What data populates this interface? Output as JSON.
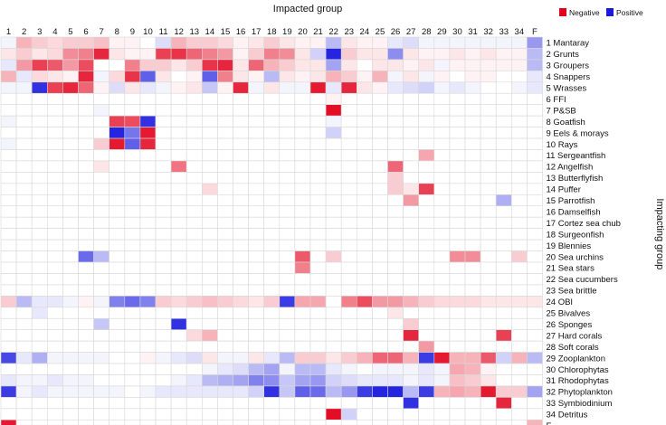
{
  "chart_data": {
    "type": "heatmap",
    "title": "Impacted group",
    "xlabel": "Impacted group",
    "ylabel": "Impacting group",
    "legend": {
      "negative_label": "Negative",
      "positive_label": "Positive",
      "placement": "top-right"
    },
    "colors": {
      "negative": "#e2001a",
      "positive": "#1a1adf",
      "neutral": "#ffffff",
      "grid": "#d8d8d8"
    },
    "columns": [
      "1",
      "2",
      "3",
      "4",
      "5",
      "6",
      "7",
      "8",
      "9",
      "10",
      "11",
      "12",
      "13",
      "14",
      "15",
      "16",
      "17",
      "18",
      "19",
      "20",
      "21",
      "22",
      "23",
      "24",
      "25",
      "26",
      "27",
      "28",
      "29",
      "30",
      "31",
      "32",
      "33",
      "34",
      "F"
    ],
    "rows": [
      {
        "num": "1",
        "name": "Mantaray"
      },
      {
        "num": "2",
        "name": "Grunts"
      },
      {
        "num": "3",
        "name": "Groupers"
      },
      {
        "num": "4",
        "name": "Snappers"
      },
      {
        "num": "5",
        "name": "Wrasses"
      },
      {
        "num": "6",
        "name": "FFI"
      },
      {
        "num": "7",
        "name": "P&SB"
      },
      {
        "num": "8",
        "name": "Goatfish"
      },
      {
        "num": "9",
        "name": "Eels & morays"
      },
      {
        "num": "10",
        "name": "Rays"
      },
      {
        "num": "11",
        "name": "Sergeantfish"
      },
      {
        "num": "12",
        "name": "Angelfish"
      },
      {
        "num": "13",
        "name": "Butterflyfish"
      },
      {
        "num": "14",
        "name": "Puffer"
      },
      {
        "num": "15",
        "name": "Parrotfish"
      },
      {
        "num": "16",
        "name": "Damselfish"
      },
      {
        "num": "17",
        "name": "Cortez sea chub"
      },
      {
        "num": "18",
        "name": "Surgeonfish"
      },
      {
        "num": "19",
        "name": "Blennies"
      },
      {
        "num": "20",
        "name": "Sea urchins"
      },
      {
        "num": "21",
        "name": "Sea stars"
      },
      {
        "num": "22",
        "name": "Sea cucumbers"
      },
      {
        "num": "23",
        "name": "Sea brittle"
      },
      {
        "num": "24",
        "name": "OBI"
      },
      {
        "num": "25",
        "name": "Bivalves"
      },
      {
        "num": "26",
        "name": "Sponges"
      },
      {
        "num": "27",
        "name": "Hard corals"
      },
      {
        "num": "28",
        "name": "Soft corals"
      },
      {
        "num": "29",
        "name": "Zooplankton"
      },
      {
        "num": "30",
        "name": "Chlorophytas"
      },
      {
        "num": "31",
        "name": "Rhodophytas"
      },
      {
        "num": "32",
        "name": "Phytoplankton"
      },
      {
        "num": "33",
        "name": "Symbiodinium"
      },
      {
        "num": "34",
        "name": "Detritus"
      },
      {
        "num": "F",
        "name": ""
      }
    ],
    "values": [
      [
        0.05,
        -0.3,
        -0.2,
        -0.15,
        -0.2,
        -0.2,
        -0.25,
        -0.05,
        -0.05,
        0,
        0.15,
        -0.3,
        -0.2,
        -0.2,
        -0.15,
        -0.05,
        -0.1,
        -0.2,
        -0.1,
        -0.05,
        -0.05,
        0.3,
        -0.1,
        -0.05,
        -0.05,
        0.1,
        0.15,
        0.05,
        0.05,
        0.05,
        0.05,
        0.05,
        0.05,
        0.05,
        0.45
      ],
      [
        -0.1,
        -0.2,
        -0.1,
        -0.15,
        -0.45,
        -0.5,
        -0.85,
        -0.1,
        -0.05,
        -0.05,
        -0.75,
        -0.8,
        -0.6,
        -0.5,
        -0.4,
        -0.05,
        -0.2,
        -0.5,
        -0.45,
        -0.1,
        0.2,
        0.95,
        -0.2,
        -0.1,
        -0.1,
        0.5,
        -0.1,
        -0.05,
        -0.05,
        -0.1,
        -0.05,
        -0.1,
        -0.05,
        -0.05,
        0.3
      ],
      [
        0.1,
        -0.4,
        -0.75,
        -0.65,
        -0.4,
        -0.7,
        0,
        0,
        -0.5,
        -0.2,
        -0.2,
        -0.1,
        -0.2,
        -0.8,
        -0.85,
        -0.1,
        -0.6,
        -0.3,
        -0.2,
        -0.1,
        -0.1,
        0.4,
        -0.1,
        0,
        -0.1,
        -0.1,
        -0.05,
        -0.1,
        0.05,
        -0.05,
        -0.05,
        -0.05,
        -0.05,
        -0.05,
        0.3
      ],
      [
        -0.3,
        0.1,
        -0.15,
        -0.1,
        -0.05,
        -0.85,
        0.05,
        -0.15,
        -0.8,
        0.7,
        -0.1,
        0,
        -0.05,
        0.7,
        -0.5,
        -0.1,
        -0.05,
        0.3,
        -0.1,
        -0.05,
        -0.1,
        -0.3,
        -0.2,
        -0.05,
        -0.3,
        0.05,
        -0.1,
        0.05,
        -0.05,
        0,
        -0.05,
        -0.05,
        0,
        0,
        0.1
      ],
      [
        0.05,
        0.05,
        0.9,
        -0.75,
        -0.85,
        -0.6,
        -0.05,
        0.15,
        -0.1,
        0.1,
        0.05,
        -0.05,
        -0.1,
        0.25,
        -0.05,
        -0.85,
        0.05,
        -0.1,
        0.05,
        0.05,
        -0.9,
        0.1,
        -0.85,
        -0.1,
        -0.05,
        0.1,
        0.15,
        0.2,
        0.05,
        0.1,
        0.05,
        0,
        0,
        0.05,
        0.1
      ],
      [
        0,
        0,
        0,
        0,
        0,
        0,
        0,
        0,
        0,
        0,
        0,
        0,
        0,
        0,
        0,
        0,
        0,
        0,
        0,
        0,
        0,
        -0.05,
        0,
        0,
        0,
        0,
        0,
        0,
        0,
        0,
        0,
        0,
        0,
        0,
        0
      ],
      [
        0,
        0,
        0,
        0,
        0,
        0,
        0.05,
        0,
        0,
        0,
        0,
        0,
        0,
        0,
        0,
        0,
        0,
        0,
        0,
        0,
        0,
        -0.95,
        0,
        0,
        0,
        0,
        0,
        0,
        0,
        0,
        0,
        0,
        0,
        0,
        0
      ],
      [
        0.05,
        0,
        0,
        0,
        0,
        0,
        0,
        -0.75,
        -0.7,
        0.9,
        0,
        0,
        0,
        0,
        0,
        0,
        0,
        0,
        0,
        0,
        0,
        0.05,
        0,
        0,
        0,
        0,
        0,
        0,
        0,
        0,
        0,
        0,
        0,
        0,
        0
      ],
      [
        0,
        0,
        0,
        0,
        0,
        0,
        0,
        0.95,
        0.6,
        -0.9,
        0,
        0,
        0,
        0,
        0,
        0,
        0,
        0,
        0,
        0,
        0,
        0.2,
        0,
        0,
        0,
        0,
        0,
        0,
        0,
        0,
        0,
        0,
        0,
        0,
        0
      ],
      [
        0.05,
        0,
        0,
        0,
        0,
        0,
        -0.2,
        -0.9,
        0.7,
        -0.85,
        0,
        0,
        0,
        0,
        0,
        0,
        0,
        0,
        0,
        0,
        0,
        0,
        0,
        0,
        0,
        0,
        0,
        0,
        0,
        0,
        0,
        0,
        0,
        0,
        0
      ],
      [
        0,
        0,
        0,
        0,
        0,
        0,
        0,
        0,
        0,
        0,
        0,
        0,
        0,
        0,
        0,
        0,
        0,
        0,
        0,
        0,
        0,
        0,
        0,
        0,
        0,
        0,
        0,
        -0.35,
        0,
        0,
        0,
        0,
        0,
        0,
        0
      ],
      [
        0,
        0,
        0,
        0,
        0,
        0,
        -0.1,
        0,
        0,
        0,
        0,
        -0.55,
        0,
        0,
        0,
        0,
        0,
        0,
        0,
        0,
        0,
        0,
        0,
        0,
        0,
        -0.6,
        0,
        0,
        0,
        0,
        0,
        0,
        0,
        0,
        0
      ],
      [
        0,
        0,
        0,
        0,
        0,
        0,
        0,
        0,
        0,
        0,
        0,
        0,
        0,
        0,
        0,
        0,
        0,
        0,
        0,
        0,
        0,
        0,
        0,
        0,
        0,
        -0.2,
        0,
        0,
        0,
        0,
        0,
        0,
        0,
        0,
        0
      ],
      [
        0,
        0,
        0,
        0,
        0,
        0,
        0,
        0,
        0,
        0,
        0,
        0,
        0,
        -0.15,
        0,
        0,
        0,
        0,
        0,
        0,
        0,
        0,
        0,
        0,
        0,
        -0.2,
        -0.1,
        -0.75,
        0,
        0,
        0,
        0,
        0,
        0,
        0
      ],
      [
        0,
        0,
        0,
        0,
        0,
        0,
        0,
        0,
        0,
        0,
        0,
        0,
        0,
        0,
        0,
        0,
        0,
        0,
        0,
        0,
        0,
        0,
        0,
        0,
        0,
        0,
        -0.4,
        0,
        0,
        0,
        0,
        0,
        0.35,
        0,
        0
      ],
      [
        0,
        0,
        0,
        0,
        0,
        0,
        0,
        0,
        0,
        0,
        0,
        0,
        0,
        0,
        0,
        0,
        0,
        0,
        0,
        0,
        0,
        0,
        0,
        0,
        0,
        0,
        0,
        0,
        0,
        0,
        0,
        0,
        0,
        0,
        0
      ],
      [
        0,
        0,
        0,
        0,
        0,
        0,
        0,
        0,
        0,
        0,
        0,
        0,
        0,
        0,
        0,
        0,
        0,
        0,
        0,
        0,
        0,
        0,
        0,
        0,
        0,
        0,
        0,
        0,
        0,
        0,
        0,
        0,
        0,
        0,
        0
      ],
      [
        0,
        0,
        0,
        0,
        0,
        0,
        0,
        0,
        0,
        0,
        0,
        0,
        0,
        0,
        0,
        0,
        0,
        0,
        0,
        0,
        0,
        0,
        0,
        0,
        0,
        0,
        0,
        0,
        0,
        0,
        0,
        0,
        0,
        0,
        0
      ],
      [
        0,
        0,
        0,
        0,
        0,
        0,
        0,
        0,
        0,
        0,
        0,
        0,
        0,
        0,
        0,
        0,
        0,
        0,
        0,
        0,
        0,
        0,
        0,
        0,
        0,
        0,
        0,
        0,
        0,
        0,
        0,
        0,
        0,
        0,
        0
      ],
      [
        0,
        0,
        0,
        0,
        0,
        0.65,
        0.3,
        0,
        0,
        0,
        0,
        0,
        0,
        0,
        0,
        0,
        0,
        0,
        0,
        -0.65,
        0,
        -0.2,
        0,
        0,
        0,
        0,
        0,
        0,
        0,
        -0.45,
        -0.45,
        0,
        0,
        -0.2,
        0
      ],
      [
        0,
        0,
        0,
        0,
        0,
        0,
        0,
        0,
        0,
        0,
        0,
        0,
        0,
        0,
        0,
        0,
        0,
        0,
        0,
        -0.5,
        0,
        0,
        0,
        0,
        0,
        0,
        0,
        0,
        0,
        0,
        0,
        0,
        0,
        0,
        0
      ],
      [
        0,
        0,
        0,
        0,
        0,
        0,
        0,
        0,
        0,
        0,
        0,
        0,
        0,
        0,
        0,
        0,
        0,
        0,
        0,
        0,
        0,
        0,
        0,
        0,
        0,
        0,
        0,
        0,
        0,
        0,
        0,
        0,
        0,
        0,
        0
      ],
      [
        0,
        0,
        0,
        0,
        0,
        0,
        0,
        0,
        0,
        0,
        0,
        0,
        0,
        0,
        0,
        0,
        0,
        0,
        0,
        0,
        0,
        0,
        0,
        0,
        0,
        0,
        0,
        0,
        0,
        0,
        0,
        0,
        0,
        0,
        0
      ],
      [
        -0.2,
        0.3,
        0.1,
        0.1,
        0.05,
        -0.05,
        0.05,
        0.55,
        0.65,
        0.55,
        -0.2,
        -0.15,
        -0.2,
        -0.25,
        -0.2,
        -0.15,
        -0.1,
        -0.2,
        0.85,
        -0.35,
        -0.35,
        0,
        -0.5,
        -0.7,
        -0.4,
        -0.4,
        -0.3,
        -0.2,
        -0.15,
        -0.15,
        -0.15,
        -0.1,
        -0.1,
        -0.1,
        -0.1
      ],
      [
        0,
        0,
        0.1,
        0,
        0,
        0,
        0,
        0,
        0,
        0,
        0,
        0,
        0,
        0,
        0,
        0,
        0,
        0,
        0,
        0,
        0,
        0,
        0,
        0,
        0,
        -0.1,
        0,
        0,
        0,
        0,
        0,
        0,
        0,
        0,
        0
      ],
      [
        0,
        0,
        0,
        0,
        0,
        0,
        0.25,
        0,
        0,
        0,
        0,
        0.9,
        0,
        0,
        0,
        0,
        0,
        0,
        0,
        0,
        0,
        0,
        0,
        0,
        0,
        0,
        -0.2,
        0,
        0,
        0,
        0,
        0,
        0,
        0,
        0
      ],
      [
        0,
        0,
        0,
        0,
        0,
        0,
        0,
        0,
        0,
        0,
        0,
        0,
        -0.15,
        -0.3,
        0,
        0,
        0,
        0,
        0,
        0,
        0,
        0,
        0,
        0,
        0,
        0,
        -0.85,
        0,
        0,
        0,
        0,
        0,
        -0.75,
        0,
        0
      ],
      [
        0,
        0,
        0,
        0,
        0,
        0,
        0,
        0,
        0,
        0,
        0,
        0,
        0,
        0,
        0,
        0,
        0,
        0,
        0,
        0,
        0,
        0,
        0,
        0,
        0,
        0,
        0,
        -0.4,
        0,
        0,
        0,
        0,
        0,
        0,
        0
      ],
      [
        0.8,
        0.1,
        0.35,
        0.05,
        0.05,
        0.05,
        0.05,
        0,
        0,
        -0.05,
        0.05,
        0.1,
        0.15,
        -0.1,
        0.05,
        0.05,
        -0.1,
        0.1,
        0.3,
        -0.2,
        -0.2,
        -0.1,
        -0.2,
        -0.3,
        -0.6,
        -0.6,
        -0.3,
        0.85,
        -0.9,
        -0.3,
        -0.3,
        -0.65,
        0.2,
        -0.3,
        0.3
      ],
      [
        0,
        0,
        0,
        0,
        0,
        0,
        0,
        0,
        0,
        0,
        0,
        0,
        0,
        0.05,
        0.1,
        0.15,
        0.3,
        0.4,
        0.05,
        0.3,
        0.3,
        0.1,
        0.05,
        0,
        0.05,
        0.05,
        0.05,
        0.1,
        0.05,
        -0.35,
        -0.3,
        -0.05,
        0,
        0,
        0
      ],
      [
        0.1,
        0.05,
        0.05,
        0.1,
        0.05,
        0.05,
        0,
        0,
        0,
        0,
        0,
        0.05,
        0.1,
        0.3,
        0.35,
        0.4,
        0.55,
        0.5,
        0.25,
        0.4,
        0.45,
        0.2,
        0.15,
        0.1,
        0.1,
        0.1,
        0.05,
        0.1,
        0.05,
        -0.25,
        -0.2,
        -0.1,
        0,
        0,
        0
      ],
      [
        0.85,
        0.05,
        0.1,
        0.05,
        0.05,
        0.05,
        0.05,
        0.05,
        0,
        0.05,
        0.1,
        0.1,
        0.1,
        0.1,
        0.1,
        0.1,
        0.2,
        0.9,
        0.25,
        0.7,
        0.65,
        0.3,
        0.45,
        0.85,
        0.95,
        0.95,
        0.3,
        0.85,
        -0.3,
        -0.35,
        -0.3,
        -0.9,
        -0.2,
        -0.2,
        0.4
      ],
      [
        0,
        0,
        0,
        0,
        0,
        0,
        0,
        0,
        0,
        0,
        0,
        0,
        0,
        0,
        0,
        0,
        0,
        0,
        0,
        0,
        0,
        0,
        0,
        0,
        0,
        0,
        0.9,
        0,
        0,
        0,
        0,
        0,
        -0.85,
        0,
        0
      ],
      [
        0,
        0,
        0,
        0,
        0,
        0,
        0,
        0,
        0,
        0,
        0,
        0,
        0,
        0,
        0,
        0,
        0,
        0,
        0,
        0,
        0,
        -0.95,
        0.2,
        0,
        0,
        0,
        0,
        0,
        0,
        0,
        0,
        0,
        0,
        0,
        0
      ],
      [
        -0.9,
        0,
        0,
        0,
        0,
        0,
        0,
        0,
        0,
        0,
        0,
        0,
        0,
        0,
        0,
        0,
        0,
        0,
        0,
        0,
        0,
        0,
        0,
        0,
        0,
        0,
        0,
        0,
        0,
        0,
        0,
        0,
        0,
        0,
        -0.3
      ]
    ]
  }
}
